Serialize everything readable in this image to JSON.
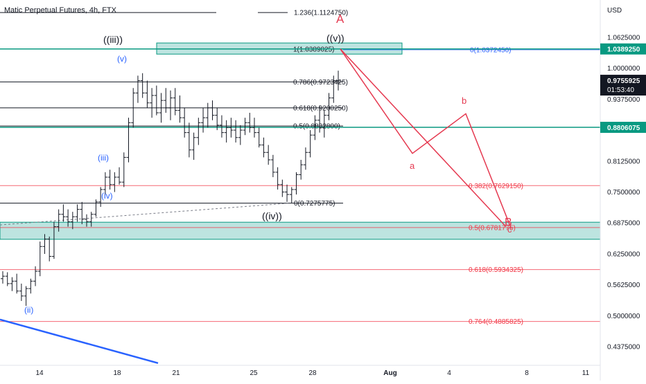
{
  "header": {
    "title": "Matic Perpetual Futures, 4h, FTX"
  },
  "colors": {
    "fib_black": "#131722",
    "fib_red": "#f23645",
    "fib_blue": "#2962ff",
    "teal": "#089981",
    "zone_fill": "#b2dfdb",
    "wave_red": "#e53950",
    "wave_blue": "#2962ff",
    "candle": "#131722"
  },
  "chart_data": {
    "type": "candlestick",
    "symbol": "Matic Perpetual Futures",
    "timeframe": "4h",
    "exchange": "FTX",
    "currency": "USD",
    "ylim": [
      0.4,
      1.128
    ],
    "x_ticks": [
      "14",
      "18",
      "21",
      "25",
      "28",
      "Aug",
      "4",
      "8",
      "11"
    ],
    "y_ticks": [
      "1.0625000",
      "1.0000000",
      "0.9375000",
      "0.8750000",
      "0.8125000",
      "0.7500000",
      "0.6875000",
      "0.6250000",
      "0.5625000",
      "0.5000000",
      "0.4375000"
    ],
    "price_badges": [
      {
        "label": "1.0389250",
        "value": 1.038925,
        "style": "teal"
      },
      {
        "label": "0.9755925",
        "value": 0.9755925,
        "style": "dark",
        "countdown": "01:53:40"
      },
      {
        "label": "0.8806075",
        "value": 0.8806075,
        "style": "teal"
      }
    ],
    "fib_black": [
      {
        "label": "1.236(1.1124750)",
        "value": 1.112475
      },
      {
        "label": "1(1.0389025)",
        "value": 1.0389025
      },
      {
        "label": "0.786(0.9723425)",
        "value": 0.9723425
      },
      {
        "label": "0.618(0.9200250)",
        "value": 0.920025
      },
      {
        "label": "0.5(0.8832800)",
        "value": 0.88328
      },
      {
        "label": "0(0.7275775)",
        "value": 0.7275775
      }
    ],
    "fib_blue": [
      {
        "label": "0(1.0372450)",
        "value": 1.037245
      }
    ],
    "fib_red": [
      {
        "label": "0.382(0.7629150)",
        "value": 0.762915
      },
      {
        "label": "0.5(0.6781775)",
        "value": 0.6781775
      },
      {
        "label": "0.618(0.5934325)",
        "value": 0.5934325
      },
      {
        "label": "0.764(0.4885825)",
        "value": 0.4885825
      }
    ],
    "zones": [
      {
        "name": "upper-zone",
        "low": 1.0285,
        "high": 1.051
      },
      {
        "name": "lower-zone",
        "low": 0.6545,
        "high": 0.689
      }
    ],
    "wave_labels_black": [
      "((iii))",
      "((v))",
      "((iv))"
    ],
    "wave_labels_blue": [
      "(v)",
      "(iii)",
      "(iv)",
      "(ii)"
    ],
    "wave_labels_red": [
      "A",
      "a",
      "b",
      "B",
      "c"
    ],
    "projection": [
      {
        "label": "start",
        "price": 1.0389
      },
      {
        "label": "a",
        "price": 0.828
      },
      {
        "label": "b",
        "price": 0.908
      },
      {
        "label": "c",
        "price": 0.678
      }
    ],
    "candles": [
      [
        0.575,
        0.59,
        0.565,
        0.58
      ],
      [
        0.58,
        0.588,
        0.56,
        0.565
      ],
      [
        0.565,
        0.578,
        0.55,
        0.57
      ],
      [
        0.57,
        0.585,
        0.545,
        0.55
      ],
      [
        0.55,
        0.565,
        0.53,
        0.54
      ],
      [
        0.54,
        0.56,
        0.52,
        0.555
      ],
      [
        0.555,
        0.575,
        0.545,
        0.57
      ],
      [
        0.57,
        0.6,
        0.56,
        0.59
      ],
      [
        0.59,
        0.65,
        0.58,
        0.64
      ],
      [
        0.64,
        0.665,
        0.625,
        0.655
      ],
      [
        0.655,
        0.66,
        0.61,
        0.62
      ],
      [
        0.62,
        0.69,
        0.615,
        0.68
      ],
      [
        0.68,
        0.715,
        0.67,
        0.705
      ],
      [
        0.705,
        0.725,
        0.69,
        0.7
      ],
      [
        0.7,
        0.715,
        0.68,
        0.69
      ],
      [
        0.69,
        0.71,
        0.675,
        0.7
      ],
      [
        0.7,
        0.725,
        0.69,
        0.715
      ],
      [
        0.715,
        0.73,
        0.685,
        0.695
      ],
      [
        0.695,
        0.705,
        0.68,
        0.69
      ],
      [
        0.69,
        0.71,
        0.68,
        0.705
      ],
      [
        0.705,
        0.735,
        0.7,
        0.73
      ],
      [
        0.73,
        0.76,
        0.72,
        0.755
      ],
      [
        0.755,
        0.79,
        0.745,
        0.78
      ],
      [
        0.78,
        0.795,
        0.755,
        0.765
      ],
      [
        0.765,
        0.79,
        0.75,
        0.78
      ],
      [
        0.78,
        0.8,
        0.765,
        0.77
      ],
      [
        0.77,
        0.83,
        0.76,
        0.82
      ],
      [
        0.82,
        0.9,
        0.81,
        0.89
      ],
      [
        0.89,
        0.96,
        0.88,
        0.95
      ],
      [
        0.95,
        0.985,
        0.93,
        0.975
      ],
      [
        0.975,
        0.99,
        0.94,
        0.95
      ],
      [
        0.95,
        0.975,
        0.92,
        0.93
      ],
      [
        0.93,
        0.96,
        0.9,
        0.945
      ],
      [
        0.945,
        0.965,
        0.905,
        0.91
      ],
      [
        0.91,
        0.95,
        0.89,
        0.935
      ],
      [
        0.935,
        0.96,
        0.91,
        0.92
      ],
      [
        0.92,
        0.955,
        0.895,
        0.94
      ],
      [
        0.94,
        0.96,
        0.905,
        0.915
      ],
      [
        0.915,
        0.945,
        0.89,
        0.9
      ],
      [
        0.9,
        0.92,
        0.86,
        0.87
      ],
      [
        0.87,
        0.89,
        0.82,
        0.835
      ],
      [
        0.835,
        0.87,
        0.815,
        0.86
      ],
      [
        0.86,
        0.9,
        0.845,
        0.89
      ],
      [
        0.89,
        0.92,
        0.87,
        0.9
      ],
      [
        0.9,
        0.93,
        0.88,
        0.92
      ],
      [
        0.92,
        0.935,
        0.895,
        0.905
      ],
      [
        0.905,
        0.92,
        0.875,
        0.885
      ],
      [
        0.885,
        0.905,
        0.86,
        0.87
      ],
      [
        0.87,
        0.895,
        0.85,
        0.88
      ],
      [
        0.88,
        0.9,
        0.86,
        0.875
      ],
      [
        0.875,
        0.895,
        0.85,
        0.86
      ],
      [
        0.86,
        0.885,
        0.845,
        0.875
      ],
      [
        0.875,
        0.9,
        0.865,
        0.89
      ],
      [
        0.89,
        0.91,
        0.87,
        0.88
      ],
      [
        0.88,
        0.9,
        0.86,
        0.87
      ],
      [
        0.87,
        0.88,
        0.84,
        0.845
      ],
      [
        0.845,
        0.86,
        0.82,
        0.83
      ],
      [
        0.83,
        0.845,
        0.805,
        0.815
      ],
      [
        0.815,
        0.825,
        0.78,
        0.79
      ],
      [
        0.79,
        0.8,
        0.755,
        0.765
      ],
      [
        0.765,
        0.775,
        0.74,
        0.75
      ],
      [
        0.75,
        0.765,
        0.73,
        0.745
      ],
      [
        0.745,
        0.76,
        0.728,
        0.755
      ],
      [
        0.755,
        0.79,
        0.745,
        0.785
      ],
      [
        0.785,
        0.815,
        0.775,
        0.805
      ],
      [
        0.805,
        0.84,
        0.795,
        0.83
      ],
      [
        0.83,
        0.875,
        0.82,
        0.865
      ],
      [
        0.865,
        0.905,
        0.855,
        0.895
      ],
      [
        0.895,
        0.925,
        0.87,
        0.88
      ],
      [
        0.88,
        0.915,
        0.86,
        0.905
      ],
      [
        0.905,
        0.95,
        0.895,
        0.94
      ],
      [
        0.94,
        0.985,
        0.93,
        0.975
      ],
      [
        0.975,
        0.995,
        0.955,
        0.9756
      ]
    ]
  }
}
